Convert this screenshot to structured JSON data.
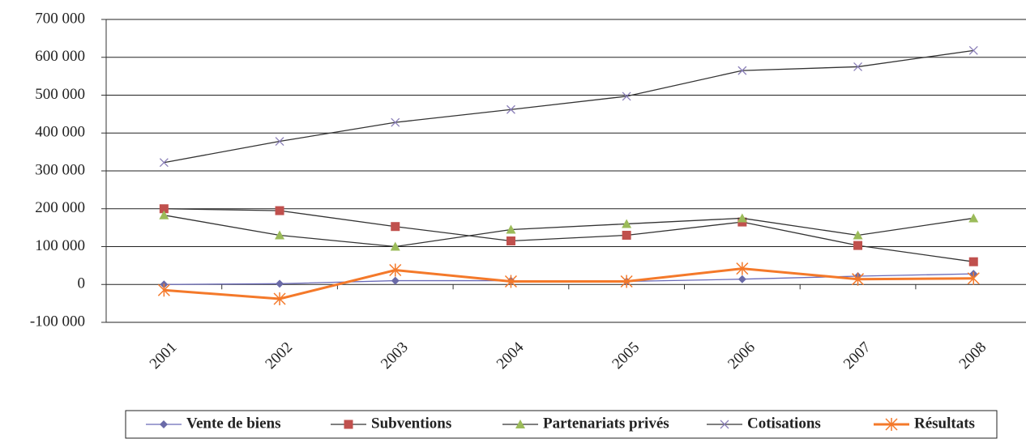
{
  "chart_data": {
    "type": "line",
    "categories": [
      "2001",
      "2002",
      "2003",
      "2004",
      "2005",
      "2006",
      "2007",
      "2008"
    ],
    "series": [
      {
        "name": "Vente de biens",
        "color": "#6a6aa8",
        "line_color": "#6a6ab8",
        "marker": "diamond",
        "values": [
          0,
          2000,
          10000,
          10000,
          8000,
          14000,
          22000,
          28000
        ]
      },
      {
        "name": "Subventions",
        "color": "#c0504d",
        "line_color": "#333333",
        "marker": "square",
        "values": [
          200000,
          195000,
          153000,
          115000,
          130000,
          165000,
          103000,
          60000
        ]
      },
      {
        "name": "Partenariats privés",
        "color": "#9bbb59",
        "line_color": "#333333",
        "marker": "triangle",
        "values": [
          183000,
          130000,
          100000,
          145000,
          160000,
          175000,
          130000,
          175000
        ]
      },
      {
        "name": "Cotisations",
        "color": "#8a7fb8",
        "line_color": "#333333",
        "marker": "x",
        "values": [
          322000,
          378000,
          428000,
          462000,
          497000,
          565000,
          575000,
          618000
        ]
      },
      {
        "name": "Résultats",
        "color": "#f4792a",
        "line_color": "#f4792a",
        "marker": "star",
        "values": [
          -15000,
          -38000,
          38000,
          8000,
          8000,
          42000,
          14000,
          16000
        ]
      }
    ],
    "ylim": [
      -100000,
      700000
    ],
    "yticks": [
      {
        "value": -100000,
        "label": "-100 000"
      },
      0,
      {
        "value": 100000,
        "label": "100 000"
      },
      {
        "value": 200000,
        "label": "200 000"
      },
      {
        "value": 300000,
        "label": "300 000"
      },
      {
        "value": 400000,
        "label": "400 000"
      },
      {
        "value": 500000,
        "label": "500 000"
      },
      {
        "value": 600000,
        "label": "600 000"
      },
      {
        "value": 700000,
        "label": "700 000"
      }
    ],
    "grid": true,
    "legend": "bottom"
  }
}
